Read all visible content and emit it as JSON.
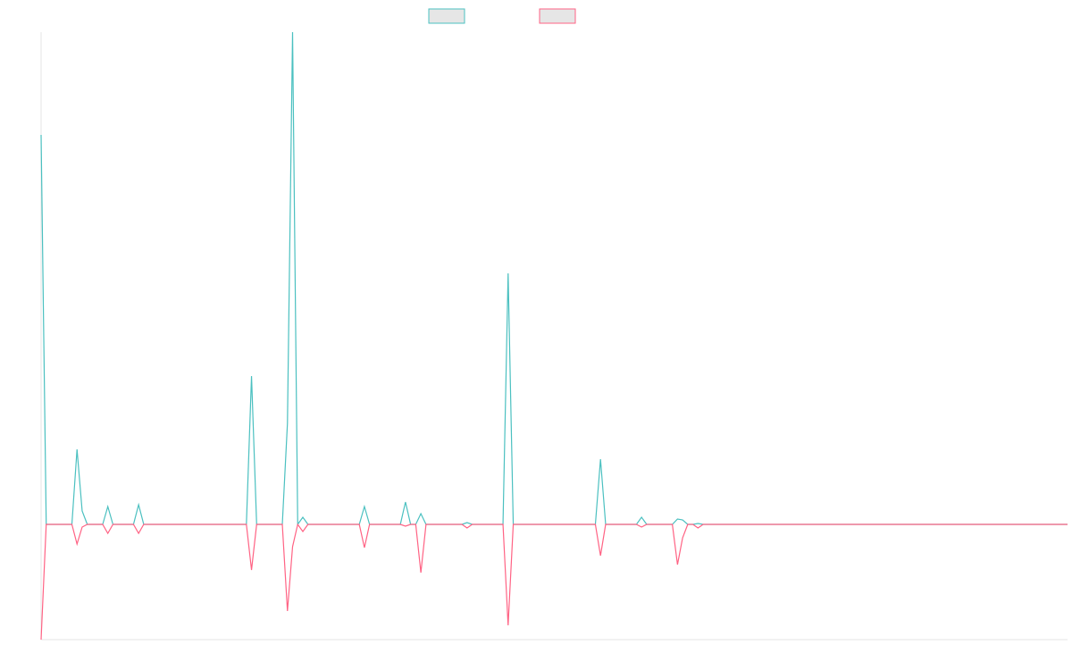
{
  "chart_data": {
    "type": "line",
    "categories": [
      null,
      null,
      null,
      null,
      null,
      null,
      null,
      null,
      null,
      null,
      null,
      null,
      null,
      null,
      null,
      null,
      null,
      null,
      null,
      null,
      null,
      null,
      null,
      null,
      null,
      null,
      null,
      null,
      null,
      null,
      null,
      null,
      null,
      null,
      null,
      null,
      null,
      null,
      null,
      null,
      null,
      null,
      null,
      null,
      null,
      null,
      null,
      null,
      null,
      null,
      null,
      null,
      null,
      null,
      null,
      null,
      null,
      null,
      null,
      null,
      null,
      null,
      null,
      null,
      null,
      null,
      null,
      null,
      null,
      null,
      null,
      null,
      null,
      null,
      null,
      null,
      null,
      null,
      null,
      null,
      null,
      null,
      null,
      null,
      null,
      null,
      null,
      null,
      null,
      null,
      null,
      null,
      null,
      null,
      null,
      null,
      null,
      null,
      null,
      null,
      null,
      null,
      null,
      null,
      null,
      null,
      null,
      null,
      null,
      null,
      null,
      null,
      null,
      null,
      null,
      null,
      null,
      null,
      null,
      null,
      null,
      null,
      null,
      null,
      null,
      null,
      null,
      null,
      null,
      null,
      null,
      null,
      null,
      null,
      null,
      null,
      null,
      null,
      null,
      null,
      null,
      null,
      null,
      null,
      null,
      null,
      null,
      null,
      null,
      null,
      null,
      null,
      null,
      null,
      null,
      null,
      null,
      null,
      null,
      null,
      null,
      null,
      null,
      null,
      null,
      null,
      null,
      null,
      null,
      null,
      null,
      null,
      null,
      null,
      null,
      null,
      null,
      null,
      null,
      null,
      null,
      null,
      null,
      null,
      null,
      null,
      null,
      null,
      null,
      null,
      null,
      null,
      null,
      null,
      null,
      null,
      null,
      null,
      null,
      null,
      null
    ],
    "series": [
      {
        "color": "#4bc0c0",
        "values": [
          436,
          0,
          0,
          0,
          0,
          0,
          0,
          84,
          15,
          0,
          0,
          0,
          0,
          20,
          0,
          0,
          0,
          0,
          0,
          22,
          0,
          0,
          0,
          0,
          0,
          0,
          0,
          0,
          0,
          0,
          0,
          0,
          0,
          0,
          0,
          0,
          0,
          0,
          0,
          0,
          0,
          166,
          0,
          0,
          0,
          0,
          0,
          0,
          113,
          551,
          0,
          8,
          0,
          0,
          0,
          0,
          0,
          0,
          0,
          0,
          0,
          0,
          0,
          20,
          0,
          0,
          0,
          0,
          0,
          0,
          0,
          25,
          0,
          0,
          12,
          0,
          0,
          0,
          0,
          0,
          0,
          0,
          0,
          2,
          0,
          0,
          0,
          0,
          0,
          0,
          0,
          281,
          0,
          0,
          0,
          0,
          0,
          0,
          0,
          0,
          0,
          0,
          0,
          0,
          0,
          0,
          0,
          0,
          0,
          73,
          0,
          0,
          0,
          0,
          0,
          0,
          0,
          8,
          0,
          0,
          0,
          0,
          0,
          0,
          6,
          5,
          0,
          0,
          1,
          0,
          0,
          0,
          0,
          0,
          0,
          0,
          0,
          0,
          0,
          0,
          0,
          0,
          0,
          0,
          0,
          0,
          0,
          0,
          0,
          0,
          0,
          0,
          0,
          0,
          0,
          0,
          0,
          0,
          0,
          0,
          0,
          0,
          0,
          0,
          0,
          0,
          0,
          0,
          0,
          0,
          0,
          0,
          0,
          0,
          0,
          0,
          0,
          0,
          0,
          0,
          0,
          0,
          0,
          0,
          0,
          0,
          0,
          0,
          0,
          0,
          0,
          0,
          0,
          0,
          0,
          0,
          0,
          0,
          0,
          0,
          0
        ]
      },
      {
        "color": "#ff6384",
        "values": [
          -129,
          0,
          0,
          0,
          0,
          0,
          0,
          -22,
          -3,
          0,
          0,
          0,
          0,
          -10,
          0,
          0,
          0,
          0,
          0,
          -10,
          0,
          0,
          0,
          0,
          0,
          0,
          0,
          0,
          0,
          0,
          0,
          0,
          0,
          0,
          0,
          0,
          0,
          0,
          0,
          0,
          0,
          -51,
          0,
          0,
          0,
          0,
          0,
          0,
          -97,
          -25,
          0,
          -8,
          0,
          0,
          0,
          0,
          0,
          0,
          0,
          0,
          0,
          0,
          0,
          -26,
          0,
          0,
          0,
          0,
          0,
          0,
          0,
          -2,
          0,
          0,
          -54,
          0,
          0,
          0,
          0,
          0,
          0,
          0,
          0,
          -4,
          0,
          0,
          0,
          0,
          0,
          0,
          0,
          -113,
          0,
          0,
          0,
          0,
          0,
          0,
          0,
          0,
          0,
          0,
          0,
          0,
          0,
          0,
          0,
          0,
          0,
          -35,
          0,
          0,
          0,
          0,
          0,
          0,
          0,
          -3,
          0,
          0,
          0,
          0,
          0,
          0,
          -45,
          -15,
          0,
          0,
          -4,
          0,
          0,
          0,
          0,
          0,
          0,
          0,
          0,
          0,
          0,
          0,
          0,
          0,
          0,
          0,
          0,
          0,
          0,
          0,
          0,
          0,
          0,
          0,
          0,
          0,
          0,
          0,
          0,
          0,
          0,
          0,
          0,
          0,
          0,
          0,
          0,
          0,
          0,
          0,
          0,
          0,
          0,
          0,
          0,
          0,
          0,
          0,
          0,
          0,
          0,
          0,
          0,
          0,
          0,
          0,
          0,
          0,
          0,
          0,
          0,
          0,
          0,
          0,
          0,
          0,
          0,
          0,
          0,
          0,
          0,
          0,
          0
        ]
      }
    ],
    "ylim": [
      -129,
      551
    ]
  }
}
